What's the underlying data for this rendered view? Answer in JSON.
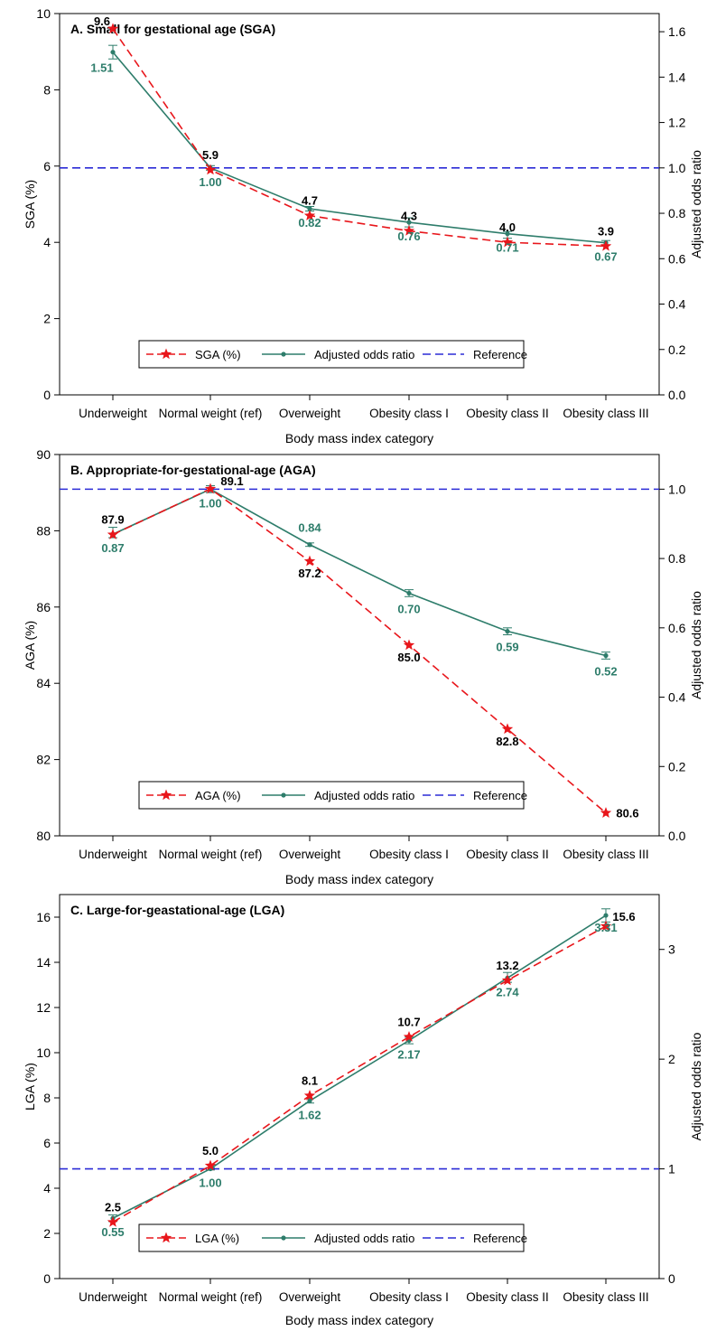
{
  "colors": {
    "pct_series": "#e8161b",
    "or_series": "#2e7d6b",
    "reference": "#2b2bd6",
    "pct_label": "#000000",
    "or_label": "#2e7d6b",
    "axis": "#000000"
  },
  "chart_data": [
    {
      "type": "line",
      "title": "A. Small for gestational age (SGA)",
      "xlabel": "Body mass index category",
      "ylabel": "SGA (%)",
      "y2label": "Adjusted odds ratio",
      "categories": [
        "Underweight",
        "Normal weight (ref)",
        "Overweight",
        "Obesity class I",
        "Obesity class II",
        "Obesity class III"
      ],
      "ylim": [
        0,
        10
      ],
      "yticks": [
        0,
        2,
        4,
        6,
        8,
        10
      ],
      "ytick_labels": [
        "0",
        "2",
        "4",
        "6",
        "8",
        "10"
      ],
      "y2lim": [
        0,
        1.68
      ],
      "y2ticks": [
        0,
        0.2,
        0.4,
        0.6,
        0.8,
        1.0,
        1.2,
        1.4,
        1.6
      ],
      "y2tick_labels": [
        "0.0",
        "0.2",
        "0.4",
        "0.6",
        "0.8",
        "1.0",
        "1.2",
        "1.4",
        "1.6"
      ],
      "series": [
        {
          "name": "SGA (%)",
          "axis": "left",
          "style": "dashed-star",
          "values": [
            9.6,
            5.9,
            4.7,
            4.3,
            4.0,
            3.9
          ],
          "labels": [
            "9.6",
            "5.9",
            "4.7",
            "4.3",
            "4.0",
            "3.9"
          ]
        },
        {
          "name": "Adjusted odds ratio",
          "axis": "right",
          "style": "solid-dot",
          "values": [
            1.51,
            1.0,
            0.82,
            0.76,
            0.71,
            0.67
          ],
          "ci": [
            [
              1.48,
              1.54
            ],
            [
              0.99,
              1.01
            ],
            [
              0.81,
              0.83
            ],
            [
              0.74,
              0.78
            ],
            [
              0.69,
              0.72
            ],
            [
              0.66,
              0.68
            ]
          ],
          "labels": [
            "1.51",
            "1.00",
            "0.82",
            "0.76",
            "0.71",
            "0.67"
          ]
        }
      ],
      "reference": {
        "name": "Reference",
        "axis": "right",
        "value": 1.0
      },
      "legend": "bottom-center",
      "grid": false
    },
    {
      "type": "line",
      "title": "B. Appropriate-for-gestational-age (AGA)",
      "xlabel": "Body mass index category",
      "ylabel": "AGA (%)",
      "y2label": "Adjusted odds ratio",
      "categories": [
        "Underweight",
        "Normal weight (ref)",
        "Overweight",
        "Obesity class I",
        "Obesity class II",
        "Obesity class III"
      ],
      "ylim": [
        80,
        90
      ],
      "yticks": [
        80,
        82,
        84,
        86,
        88,
        90
      ],
      "ytick_labels": [
        "80",
        "82",
        "84",
        "86",
        "88",
        "90"
      ],
      "y2lim": [
        0,
        1.1
      ],
      "y2ticks": [
        0,
        0.2,
        0.4,
        0.6,
        0.8,
        1.0
      ],
      "y2tick_labels": [
        "0.0",
        "0.2",
        "0.4",
        "0.6",
        "0.8",
        "1.0"
      ],
      "series": [
        {
          "name": "AGA (%)",
          "axis": "left",
          "style": "dashed-star",
          "values": [
            87.9,
            89.1,
            87.2,
            85.0,
            82.8,
            80.6
          ],
          "labels": [
            "87.9",
            "89.1",
            "87.2",
            "85.0",
            "82.8",
            "80.6"
          ]
        },
        {
          "name": "Adjusted odds ratio",
          "axis": "right",
          "style": "solid-dot",
          "values": [
            0.87,
            1.0,
            0.84,
            0.7,
            0.59,
            0.52
          ],
          "ci": [
            [
              0.86,
              0.89
            ],
            [
              0.99,
              1.01
            ],
            [
              0.835,
              0.845
            ],
            [
              0.69,
              0.71
            ],
            [
              0.58,
              0.6
            ],
            [
              0.51,
              0.53
            ]
          ],
          "labels": [
            "0.87",
            "1.00",
            "0.84",
            "0.70",
            "0.59",
            "0.52"
          ]
        }
      ],
      "reference": {
        "name": "Reference",
        "axis": "right",
        "value": 1.0
      },
      "legend": "bottom-center",
      "grid": false
    },
    {
      "type": "line",
      "title": "C. Large-for-geastational-age (LGA)",
      "xlabel": "Body mass index category",
      "ylabel": "LGA (%)",
      "y2label": "Adjusted odds ratio",
      "categories": [
        "Underweight",
        "Normal weight (ref)",
        "Overweight",
        "Obesity class I",
        "Obesity class II",
        "Obesity class III"
      ],
      "ylim": [
        0,
        17
      ],
      "yticks": [
        0,
        2,
        4,
        6,
        8,
        10,
        12,
        14,
        16
      ],
      "ytick_labels": [
        "0",
        "2",
        "4",
        "6",
        "8",
        "10",
        "12",
        "14",
        "16"
      ],
      "y2lim": [
        0,
        3.5
      ],
      "y2ticks": [
        0,
        1,
        2,
        3
      ],
      "y2tick_labels": [
        "0",
        "1",
        "2",
        "3"
      ],
      "series": [
        {
          "name": "LGA (%)",
          "axis": "left",
          "style": "dashed-star",
          "values": [
            2.5,
            5.0,
            8.1,
            10.7,
            13.2,
            15.6
          ],
          "labels": [
            "2.5",
            "5.0",
            "8.1",
            "10.7",
            "13.2",
            "15.6"
          ]
        },
        {
          "name": "Adjusted odds ratio",
          "axis": "right",
          "style": "solid-dot",
          "values": [
            0.55,
            1.0,
            1.62,
            2.17,
            2.74,
            3.31
          ],
          "ci": [
            [
              0.52,
              0.58
            ],
            [
              0.99,
              1.01
            ],
            [
              1.6,
              1.64
            ],
            [
              2.14,
              2.2
            ],
            [
              2.7,
              2.79
            ],
            [
              3.25,
              3.37
            ]
          ],
          "labels": [
            "0.55",
            "1.00",
            "1.62",
            "2.17",
            "2.74",
            "3.31"
          ]
        }
      ],
      "reference": {
        "name": "Reference",
        "axis": "right",
        "value": 1.0
      },
      "legend": "bottom-center",
      "grid": false
    }
  ]
}
